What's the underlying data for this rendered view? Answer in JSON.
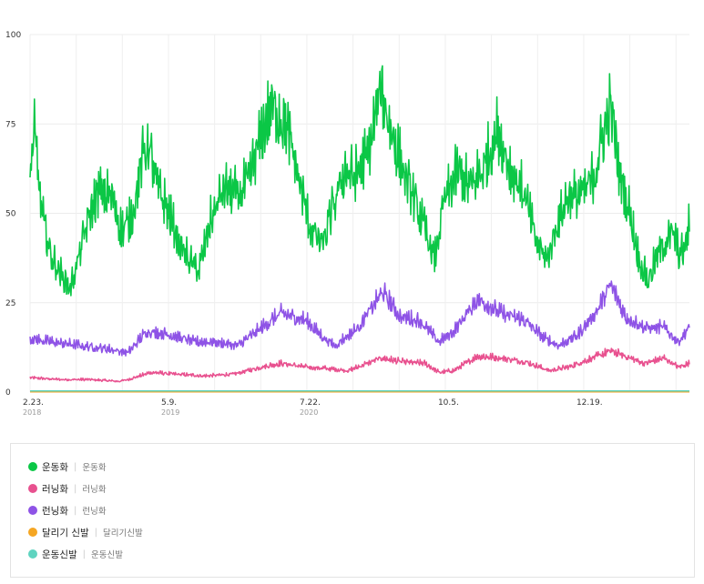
{
  "chart_data": {
    "type": "line",
    "x_ticks": [
      {
        "label": "2.23.",
        "year": "2018",
        "date": "2018-02-23"
      },
      {
        "label": "5.9.",
        "year": "2019",
        "date": "2019-05-09"
      },
      {
        "label": "7.22.",
        "year": "2020",
        "date": "2020-07-22"
      },
      {
        "label": "10.5.",
        "year": "",
        "date": "2021-10-05"
      },
      {
        "label": "12.19.",
        "year": "",
        "date": "2022-12-19"
      }
    ],
    "xlim": [
      "2018-02-23",
      "2023-11-20"
    ],
    "y_ticks": [
      "0",
      "25",
      "50",
      "75",
      "100"
    ],
    "ylim": [
      0,
      100
    ],
    "grid": "vertical and horizontal, light gray",
    "legend_position": "bottom",
    "series": [
      {
        "name": "운동화",
        "sub": "운동화",
        "color": "#0bc746",
        "points": [
          [
            "2018-02-23",
            62
          ],
          [
            "2018-03-10",
            72
          ],
          [
            "2018-04-01",
            50
          ],
          [
            "2018-05-01",
            38
          ],
          [
            "2018-06-01",
            33
          ],
          [
            "2018-07-01",
            29
          ],
          [
            "2018-07-20",
            35
          ],
          [
            "2018-09-01",
            50
          ],
          [
            "2018-10-01",
            56
          ],
          [
            "2018-11-15",
            54
          ],
          [
            "2018-12-10",
            45
          ],
          [
            "2019-01-10",
            48
          ],
          [
            "2019-02-15",
            65
          ],
          [
            "2019-03-05",
            70
          ],
          [
            "2019-04-01",
            58
          ],
          [
            "2019-05-10",
            50
          ],
          [
            "2019-06-15",
            41
          ],
          [
            "2019-07-20",
            36
          ],
          [
            "2019-08-15",
            34
          ],
          [
            "2019-09-20",
            48
          ],
          [
            "2019-11-01",
            57
          ],
          [
            "2019-12-15",
            55
          ],
          [
            "2020-01-15",
            58
          ],
          [
            "2020-03-01",
            72
          ],
          [
            "2020-04-01",
            80
          ],
          [
            "2020-05-15",
            75
          ],
          [
            "2020-06-20",
            62
          ],
          [
            "2020-08-01",
            46
          ],
          [
            "2020-09-10",
            41
          ],
          [
            "2020-10-15",
            52
          ],
          [
            "2020-11-20",
            62
          ],
          [
            "2020-12-20",
            60
          ],
          [
            "2021-02-01",
            66
          ],
          [
            "2021-03-15",
            85
          ],
          [
            "2021-04-10",
            75
          ],
          [
            "2021-05-20",
            63
          ],
          [
            "2021-07-01",
            53
          ],
          [
            "2021-08-10",
            43
          ],
          [
            "2021-09-01",
            37
          ],
          [
            "2021-10-01",
            53
          ],
          [
            "2021-11-15",
            62
          ],
          [
            "2021-12-20",
            57
          ],
          [
            "2022-02-01",
            62
          ],
          [
            "2022-03-20",
            73
          ],
          [
            "2022-05-01",
            62
          ],
          [
            "2022-06-15",
            55
          ],
          [
            "2022-07-20",
            42
          ],
          [
            "2022-08-25",
            37
          ],
          [
            "2022-09-25",
            47
          ],
          [
            "2022-11-01",
            55
          ],
          [
            "2022-12-15",
            55
          ],
          [
            "2023-01-20",
            60
          ],
          [
            "2023-02-20",
            72
          ],
          [
            "2023-03-15",
            80
          ],
          [
            "2023-04-10",
            62
          ],
          [
            "2023-05-15",
            50
          ],
          [
            "2023-06-10",
            38
          ],
          [
            "2023-07-10",
            31
          ],
          [
            "2023-08-10",
            38
          ],
          [
            "2023-09-10",
            43
          ],
          [
            "2023-10-01",
            44
          ],
          [
            "2023-10-20",
            38
          ],
          [
            "2023-11-05",
            40
          ],
          [
            "2023-11-20",
            47
          ]
        ]
      },
      {
        "name": "러닝화",
        "sub": "러닝화",
        "color": "#e8518f",
        "points": [
          [
            "2018-02-23",
            4
          ],
          [
            "2018-06-01",
            3.5
          ],
          [
            "2018-09-01",
            3.5
          ],
          [
            "2018-12-01",
            3
          ],
          [
            "2019-01-01",
            3.5
          ],
          [
            "2019-03-15",
            5.5
          ],
          [
            "2019-06-01",
            5
          ],
          [
            "2019-09-01",
            4.5
          ],
          [
            "2019-12-01",
            5
          ],
          [
            "2020-03-01",
            7
          ],
          [
            "2020-05-01",
            8
          ],
          [
            "2020-07-20",
            7
          ],
          [
            "2020-10-01",
            6.5
          ],
          [
            "2020-12-01",
            6
          ],
          [
            "2021-03-15",
            9.5
          ],
          [
            "2021-05-15",
            8.5
          ],
          [
            "2021-08-01",
            8
          ],
          [
            "2021-09-15",
            5.5
          ],
          [
            "2021-11-01",
            6
          ],
          [
            "2022-01-15",
            10
          ],
          [
            "2022-04-01",
            9.5
          ],
          [
            "2022-06-15",
            8.5
          ],
          [
            "2022-09-01",
            6
          ],
          [
            "2022-11-01",
            7
          ],
          [
            "2023-01-01",
            9
          ],
          [
            "2023-03-15",
            11.5
          ],
          [
            "2023-05-01",
            10
          ],
          [
            "2023-07-01",
            8
          ],
          [
            "2023-09-01",
            9.5
          ],
          [
            "2023-10-15",
            7
          ],
          [
            "2023-11-20",
            8
          ]
        ]
      },
      {
        "name": "런닝화",
        "sub": "런닝화",
        "color": "#8e53e6",
        "points": [
          [
            "2018-02-23",
            15
          ],
          [
            "2018-05-01",
            14
          ],
          [
            "2018-08-01",
            13
          ],
          [
            "2018-11-01",
            12
          ],
          [
            "2019-01-01",
            11
          ],
          [
            "2019-03-01",
            17
          ],
          [
            "2019-05-15",
            16
          ],
          [
            "2019-08-01",
            14
          ],
          [
            "2019-10-01",
            14
          ],
          [
            "2019-12-15",
            13
          ],
          [
            "2020-03-01",
            18
          ],
          [
            "2020-05-01",
            22
          ],
          [
            "2020-07-20",
            20
          ],
          [
            "2020-09-15",
            15
          ],
          [
            "2020-10-20",
            13
          ],
          [
            "2021-01-01",
            18
          ],
          [
            "2021-03-20",
            28
          ],
          [
            "2021-05-15",
            21
          ],
          [
            "2021-07-15",
            20
          ],
          [
            "2021-09-15",
            14
          ],
          [
            "2021-11-01",
            17
          ],
          [
            "2022-01-15",
            26
          ],
          [
            "2022-04-01",
            22
          ],
          [
            "2022-06-15",
            20
          ],
          [
            "2022-08-15",
            15
          ],
          [
            "2022-10-01",
            13
          ],
          [
            "2022-12-01",
            16
          ],
          [
            "2023-02-01",
            23
          ],
          [
            "2023-03-15",
            30
          ],
          [
            "2023-05-01",
            21
          ],
          [
            "2023-07-01",
            18
          ],
          [
            "2023-09-01",
            18
          ],
          [
            "2023-10-15",
            14
          ],
          [
            "2023-11-20",
            18
          ]
        ]
      },
      {
        "name": "달리기 신발",
        "sub": "달리기신발",
        "color": "#f5a623",
        "points": [
          [
            "2018-02-23",
            0.05
          ],
          [
            "2023-11-20",
            0.05
          ]
        ]
      },
      {
        "name": "운동신발",
        "sub": "운동신발",
        "color": "#5fd4c0",
        "points": [
          [
            "2018-02-23",
            0.3
          ],
          [
            "2023-11-20",
            0.3
          ]
        ]
      }
    ]
  }
}
